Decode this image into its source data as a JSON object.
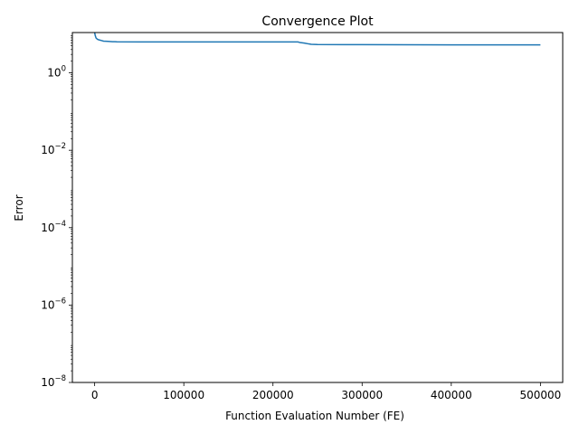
{
  "chart_data": {
    "type": "line",
    "title": "Convergence Plot",
    "xlabel": "Function Evaluation Number (FE)",
    "ylabel": "Error",
    "yscale": "log",
    "xlim": [
      -25000,
      525000
    ],
    "ylim": [
      1e-08,
      11
    ],
    "grid": false,
    "xticks": [
      {
        "value": 0,
        "label": "0"
      },
      {
        "value": 100000,
        "label": "100000"
      },
      {
        "value": 200000,
        "label": "200000"
      },
      {
        "value": 300000,
        "label": "300000"
      },
      {
        "value": 400000,
        "label": "400000"
      },
      {
        "value": 500000,
        "label": "500000"
      }
    ],
    "yticks": [
      {
        "value": 1,
        "base": "10",
        "exp": "0"
      },
      {
        "value": 0.01,
        "base": "10",
        "exp": "−2"
      },
      {
        "value": 0.0001,
        "base": "10",
        "exp": "−4"
      },
      {
        "value": 1e-06,
        "base": "10",
        "exp": "−6"
      },
      {
        "value": 1e-08,
        "base": "10",
        "exp": "−8"
      }
    ],
    "series": [
      {
        "color": "#1f77b4",
        "x": [
          0,
          500,
          1500,
          3000,
          5000,
          8000,
          10000,
          15000,
          20000,
          25000,
          50000,
          100000,
          150000,
          200000,
          228000,
          230000,
          235000,
          240000,
          243000,
          250000,
          300000,
          400000,
          500000
        ],
        "y": [
          11,
          9.5,
          8.0,
          7.4,
          7.1,
          6.8,
          6.6,
          6.5,
          6.4,
          6.35,
          6.3,
          6.3,
          6.3,
          6.3,
          6.3,
          6.1,
          5.9,
          5.6,
          5.45,
          5.4,
          5.35,
          5.3,
          5.3
        ]
      }
    ]
  }
}
